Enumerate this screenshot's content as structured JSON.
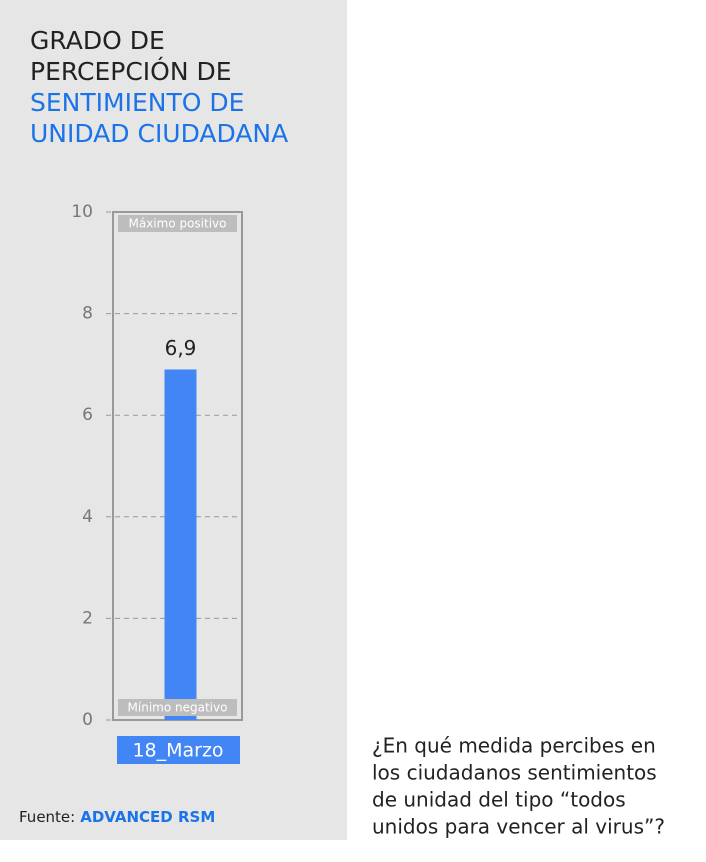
{
  "chart_data": {
    "type": "bar",
    "title_lines": [
      "GRADO DE",
      "PERCEPCIÓN DE"
    ],
    "title_highlight_lines": [
      "SENTIMIENTO DE",
      "UNIDAD CIUDADANA"
    ],
    "categories": [
      "18_Marzo"
    ],
    "values": [
      6.9
    ],
    "value_labels": [
      "6,9"
    ],
    "color": "#4285f4",
    "ylim": [
      0,
      10
    ],
    "yticks": [
      0,
      2,
      4,
      6,
      8,
      10
    ],
    "grid": true,
    "annotations": {
      "top": "Máximo positivo",
      "bottom": "Mínimo negativo"
    },
    "source_label": "Fuente:",
    "source": "ADVANCED RSM",
    "question_lines": [
      "¿En qué medida percibes en",
      "los ciudadanos sentimientos",
      "de unidad del tipo “todos",
      "unidos para vencer al virus”?"
    ]
  }
}
